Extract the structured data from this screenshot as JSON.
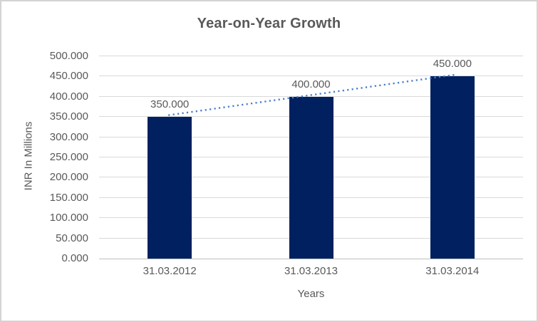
{
  "chart_data": {
    "type": "bar",
    "title": "Year-on-Year Growth",
    "xlabel": "Years",
    "ylabel": "INR In Millions",
    "categories": [
      "31.03.2012",
      "31.03.2013",
      "31.03.2014"
    ],
    "values": [
      350,
      400,
      450
    ],
    "data_labels": [
      "350.000",
      "400.000",
      "450.000"
    ],
    "ylim": [
      0,
      500
    ],
    "ytick_values": [
      0,
      50,
      100,
      150,
      200,
      250,
      300,
      350,
      400,
      450,
      500
    ],
    "ytick_labels": [
      "0.000",
      "50.000",
      "100.000",
      "150.000",
      "200.000",
      "250.000",
      "300.000",
      "350.000",
      "400.000",
      "450.000",
      "500.000"
    ],
    "grid": true,
    "legend": "none",
    "trendline": {
      "type": "linear",
      "style": "dotted",
      "from_value": 350,
      "to_value": 450
    },
    "colors": {
      "bar": "#002060",
      "trendline": "#4a80c9",
      "gridline": "#d9d9d9",
      "axis_line": "#bfbfbf",
      "text": "#595959",
      "frame_border": "#d3d3d3",
      "background": "#ffffff"
    }
  }
}
